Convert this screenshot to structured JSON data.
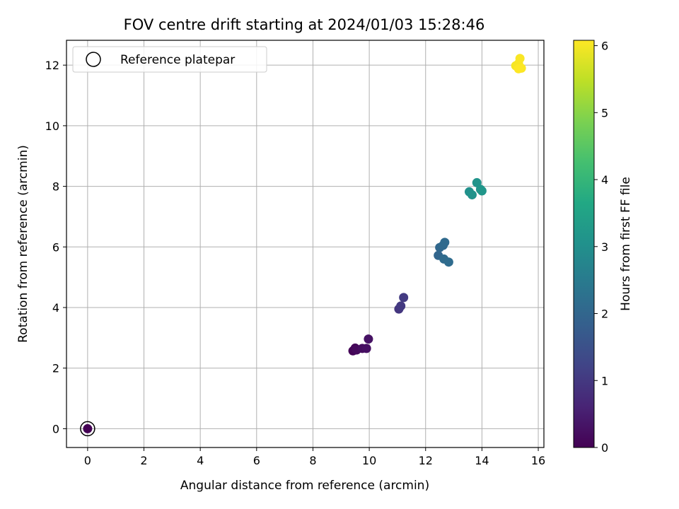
{
  "chart_data": {
    "type": "scatter",
    "title": "FOV centre drift starting at 2024/01/03 15:28:46",
    "xlabel": "Angular distance from reference (arcmin)",
    "ylabel": "Rotation from reference (arcmin)",
    "xlim": [
      -0.75,
      16.2
    ],
    "ylim": [
      -0.62,
      12.82
    ],
    "xticks": [
      0,
      2,
      4,
      6,
      8,
      10,
      12,
      14,
      16
    ],
    "yticks": [
      0,
      2,
      4,
      6,
      8,
      10,
      12
    ],
    "grid": true,
    "legend": {
      "label": "Reference platepar",
      "placement": "top-left"
    },
    "reference_point": {
      "x": 0,
      "y": 0
    },
    "colorbar": {
      "label": "Hours from first FF file",
      "range": [
        0,
        6.08
      ],
      "ticks": [
        0,
        1,
        2,
        3,
        4,
        5,
        6
      ],
      "colormap": "viridis"
    },
    "points": [
      {
        "x": 0.0,
        "y": 0.0,
        "hours": 0.0
      },
      {
        "x": 9.42,
        "y": 2.57,
        "hours": 0.05
      },
      {
        "x": 9.5,
        "y": 2.66,
        "hours": 0.1
      },
      {
        "x": 9.55,
        "y": 2.6,
        "hours": 0.15
      },
      {
        "x": 9.75,
        "y": 2.65,
        "hours": 0.2
      },
      {
        "x": 9.9,
        "y": 2.65,
        "hours": 0.25
      },
      {
        "x": 9.97,
        "y": 2.96,
        "hours": 0.3
      },
      {
        "x": 11.05,
        "y": 3.95,
        "hours": 0.95
      },
      {
        "x": 11.12,
        "y": 4.05,
        "hours": 1.0
      },
      {
        "x": 11.22,
        "y": 4.33,
        "hours": 1.05
      },
      {
        "x": 12.45,
        "y": 5.72,
        "hours": 2.0
      },
      {
        "x": 12.5,
        "y": 5.98,
        "hours": 2.03
      },
      {
        "x": 12.62,
        "y": 6.05,
        "hours": 2.06
      },
      {
        "x": 12.68,
        "y": 6.15,
        "hours": 2.09
      },
      {
        "x": 12.65,
        "y": 5.6,
        "hours": 2.12
      },
      {
        "x": 12.82,
        "y": 5.5,
        "hours": 2.15
      },
      {
        "x": 13.55,
        "y": 7.82,
        "hours": 3.05
      },
      {
        "x": 13.65,
        "y": 7.72,
        "hours": 3.08
      },
      {
        "x": 13.82,
        "y": 8.12,
        "hours": 3.11
      },
      {
        "x": 13.95,
        "y": 7.9,
        "hours": 3.14
      },
      {
        "x": 14.0,
        "y": 7.85,
        "hours": 3.17
      },
      {
        "x": 15.2,
        "y": 11.98,
        "hours": 6.0
      },
      {
        "x": 15.3,
        "y": 12.05,
        "hours": 6.02
      },
      {
        "x": 15.35,
        "y": 12.22,
        "hours": 6.04
      },
      {
        "x": 15.4,
        "y": 11.9,
        "hours": 6.06
      },
      {
        "x": 15.3,
        "y": 11.88,
        "hours": 6.08
      }
    ]
  }
}
